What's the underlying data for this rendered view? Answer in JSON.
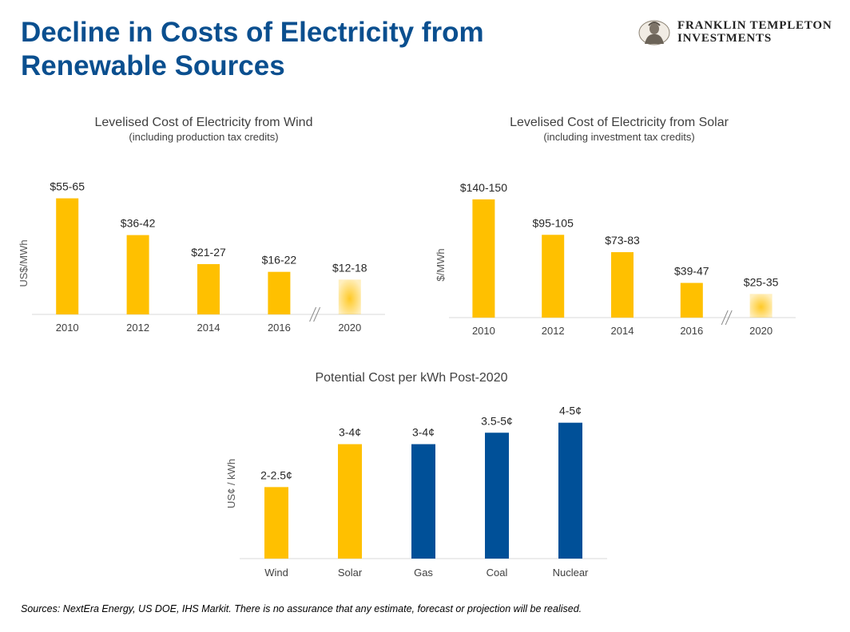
{
  "page": {
    "title_line1": "Decline in Costs of Electricity from",
    "title_line2": "Renewable Sources",
    "logo_line1": "FRANKLIN TEMPLETON",
    "logo_line2": "INVESTMENTS",
    "footnote": "Sources: NextEra Energy, US DOE, IHS Markit. There is no assurance that any estimate, forecast or projection will be realised."
  },
  "colors": {
    "title": "#0a4f8f",
    "renewable": "#ffc000",
    "conventional": "#005098",
    "axis": "#d9d9d9",
    "text": "#404040"
  },
  "chart_data": [
    {
      "id": "wind",
      "type": "bar",
      "title": "Levelised Cost of Electricity from Wind",
      "subtitle": "(including production tax credits)",
      "ylabel": "US$/MWh",
      "xlabel": "",
      "categories": [
        "2010",
        "2012",
        "2014",
        "2016",
        "2020"
      ],
      "values": [
        60,
        41,
        26,
        22,
        18
      ],
      "data_labels": [
        "$55-65",
        "$36-42",
        "$21-27",
        "$16-22",
        "$12-18"
      ],
      "bar_styles": [
        "solid",
        "solid",
        "solid",
        "solid",
        "faded"
      ],
      "axis_break_before_index": 4,
      "ylim": [
        0,
        66
      ],
      "grid": false,
      "legend": "none"
    },
    {
      "id": "solar",
      "type": "bar",
      "title": "Levelised Cost of Electricity from Solar",
      "subtitle": "(including investment tax credits)",
      "ylabel": "$/MWh",
      "xlabel": "",
      "categories": [
        "2010",
        "2012",
        "2014",
        "2016",
        "2020"
      ],
      "values": [
        150,
        105,
        83,
        44,
        30
      ],
      "data_labels": [
        "$140-150",
        "$95-105",
        "$73-83",
        "$39-47",
        "$25-35"
      ],
      "bar_styles": [
        "solid",
        "solid",
        "solid",
        "solid",
        "faded"
      ],
      "axis_break_before_index": 4,
      "ylim": [
        0,
        165
      ],
      "grid": false,
      "legend": "none"
    },
    {
      "id": "post2020",
      "type": "bar",
      "title": "Potential Cost per kWh Post-2020",
      "subtitle": "",
      "ylabel": "US¢ / kWh",
      "xlabel": "",
      "categories": [
        "Wind",
        "Solar",
        "Gas",
        "Coal",
        "Nuclear"
      ],
      "values": [
        2.5,
        4,
        4,
        4.4,
        4.75
      ],
      "data_labels": [
        "2-2.5¢",
        "3-4¢",
        "3-4¢",
        "3.5-5¢",
        "4-5¢"
      ],
      "bar_colors": [
        "#ffc000",
        "#ffc000",
        "#005098",
        "#005098",
        "#005098"
      ],
      "ylim": [
        0,
        5.3
      ],
      "grid": false,
      "legend": "none"
    }
  ]
}
